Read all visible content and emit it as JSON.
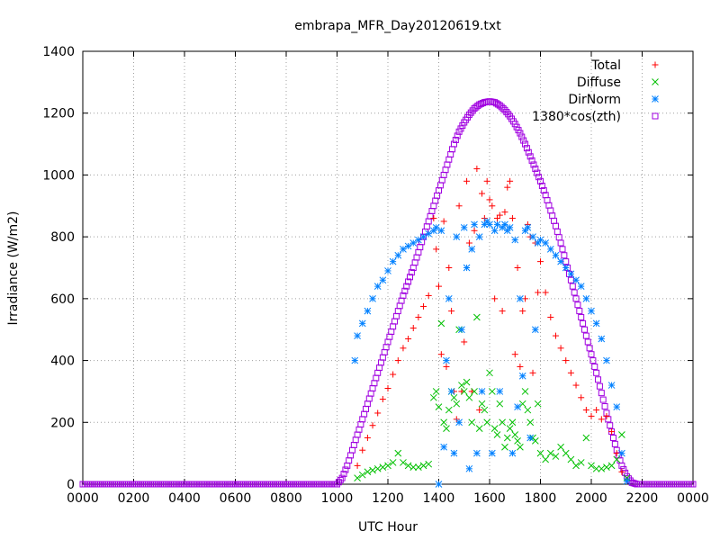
{
  "chart_data": {
    "type": "scatter",
    "title": "embrapa_MFR_Day20120619.txt",
    "xlabel": "UTC Hour",
    "ylabel": "Irradiance (W/m2)",
    "xlim": [
      0,
      24
    ],
    "ylim": [
      0,
      1400
    ],
    "xticks": [
      0,
      2,
      4,
      6,
      8,
      10,
      12,
      14,
      16,
      18,
      20,
      22,
      24
    ],
    "xtick_labels": [
      "0000",
      "0200",
      "0400",
      "0600",
      "0800",
      "1000",
      "1200",
      "1400",
      "1600",
      "1800",
      "2000",
      "2200",
      "0000"
    ],
    "yticks": [
      0,
      200,
      400,
      600,
      800,
      1000,
      1200,
      1400
    ],
    "ytick_labels": [
      "0",
      "200",
      "400",
      "600",
      "800",
      "1000",
      "1200",
      "1400"
    ],
    "grid": true,
    "legend_position": "top-right",
    "series": [
      {
        "name": "Total",
        "marker": "plus",
        "color": "#ff0000",
        "x": [
          10.8,
          11.0,
          11.2,
          11.4,
          11.6,
          11.8,
          12.0,
          12.2,
          12.4,
          12.6,
          12.8,
          13.0,
          13.2,
          13.4,
          13.6,
          13.8,
          13.9,
          14.0,
          14.1,
          14.2,
          14.3,
          14.4,
          14.5,
          14.6,
          14.7,
          14.8,
          14.9,
          15.0,
          15.1,
          15.2,
          15.3,
          15.4,
          15.5,
          15.6,
          15.7,
          15.8,
          15.9,
          16.0,
          16.1,
          16.2,
          16.3,
          16.4,
          16.5,
          16.6,
          16.7,
          16.8,
          16.9,
          17.0,
          17.1,
          17.2,
          17.3,
          17.4,
          17.5,
          17.6,
          17.7,
          17.8,
          17.9,
          18.0,
          18.2,
          18.4,
          18.6,
          18.8,
          19.0,
          19.2,
          19.4,
          19.6,
          19.8,
          20.0,
          20.2,
          20.4,
          20.6,
          20.8,
          21.0,
          21.2,
          21.4
        ],
        "y": [
          60,
          110,
          150,
          190,
          230,
          275,
          310,
          355,
          400,
          440,
          470,
          505,
          540,
          575,
          610,
          860,
          760,
          640,
          420,
          850,
          380,
          700,
          560,
          300,
          210,
          900,
          300,
          460,
          980,
          780,
          300,
          820,
          1020,
          240,
          940,
          860,
          980,
          920,
          900,
          600,
          860,
          870,
          560,
          880,
          960,
          980,
          860,
          420,
          700,
          380,
          560,
          600,
          840,
          800,
          360,
          780,
          620,
          720,
          620,
          540,
          480,
          440,
          400,
          360,
          320,
          280,
          240,
          220,
          240,
          210,
          220,
          170,
          100,
          40,
          10
        ]
      },
      {
        "name": "Diffuse",
        "marker": "cross",
        "color": "#00c000",
        "x": [
          10.8,
          11.0,
          11.2,
          11.4,
          11.6,
          11.8,
          12.0,
          12.2,
          12.4,
          12.6,
          12.8,
          13.0,
          13.2,
          13.4,
          13.6,
          13.8,
          13.9,
          14.0,
          14.1,
          14.2,
          14.3,
          14.4,
          14.5,
          14.6,
          14.7,
          14.8,
          14.9,
          15.0,
          15.1,
          15.2,
          15.3,
          15.4,
          15.5,
          15.6,
          15.7,
          15.8,
          15.9,
          16.0,
          16.1,
          16.2,
          16.3,
          16.4,
          16.5,
          16.6,
          16.7,
          16.8,
          16.9,
          17.0,
          17.1,
          17.2,
          17.3,
          17.4,
          17.5,
          17.6,
          17.7,
          17.8,
          17.9,
          18.0,
          18.2,
          18.4,
          18.6,
          18.8,
          19.0,
          19.2,
          19.4,
          19.6,
          19.8,
          20.0,
          20.2,
          20.4,
          20.6,
          20.8,
          21.0,
          21.2,
          21.4
        ],
        "y": [
          20,
          30,
          40,
          45,
          50,
          55,
          60,
          70,
          100,
          70,
          60,
          55,
          55,
          60,
          65,
          280,
          300,
          250,
          520,
          200,
          180,
          240,
          300,
          280,
          260,
          500,
          320,
          300,
          330,
          280,
          200,
          300,
          540,
          180,
          260,
          240,
          200,
          360,
          300,
          180,
          160,
          260,
          200,
          120,
          150,
          180,
          200,
          160,
          140,
          120,
          260,
          300,
          240,
          200,
          150,
          140,
          260,
          100,
          80,
          100,
          90,
          120,
          100,
          80,
          60,
          70,
          150,
          60,
          50,
          50,
          55,
          60,
          80,
          160,
          20
        ],
        "note_hidden": ""
      },
      {
        "name": "DirNorm",
        "marker": "star",
        "color": "#0080ff",
        "x": [
          10.7,
          10.8,
          11.0,
          11.2,
          11.4,
          11.6,
          11.8,
          12.0,
          12.2,
          12.4,
          12.6,
          12.8,
          13.0,
          13.2,
          13.4,
          13.6,
          13.8,
          13.9,
          14.0,
          14.1,
          14.2,
          14.3,
          14.4,
          14.5,
          14.6,
          14.7,
          14.8,
          14.9,
          15.0,
          15.1,
          15.2,
          15.3,
          15.4,
          15.5,
          15.6,
          15.7,
          15.8,
          15.9,
          16.0,
          16.1,
          16.2,
          16.3,
          16.4,
          16.5,
          16.6,
          16.7,
          16.8,
          16.9,
          17.0,
          17.1,
          17.2,
          17.3,
          17.4,
          17.5,
          17.6,
          17.7,
          17.8,
          17.9,
          18.0,
          18.2,
          18.4,
          18.6,
          18.8,
          19.0,
          19.2,
          19.4,
          19.6,
          19.8,
          20.0,
          20.2,
          20.4,
          20.6,
          20.8,
          21.0,
          21.2,
          21.4
        ],
        "y": [
          400,
          480,
          520,
          560,
          600,
          640,
          660,
          690,
          720,
          740,
          760,
          770,
          780,
          790,
          800,
          810,
          820,
          830,
          0,
          820,
          120,
          400,
          600,
          300,
          100,
          800,
          200,
          500,
          830,
          700,
          50,
          760,
          840,
          100,
          800,
          300,
          840,
          850,
          840,
          100,
          820,
          840,
          300,
          830,
          840,
          820,
          830,
          100,
          790,
          250,
          600,
          350,
          820,
          830,
          150,
          800,
          500,
          780,
          790,
          780,
          760,
          740,
          720,
          700,
          680,
          660,
          640,
          600,
          560,
          520,
          470,
          400,
          320,
          250,
          100,
          10
        ]
      },
      {
        "name": "1380*cos(zth)",
        "marker": "square",
        "color": "#a000e0",
        "x": [
          0,
          10.0,
          10.2,
          10.4,
          10.6,
          10.8,
          11.0,
          11.2,
          11.4,
          11.6,
          11.8,
          12.0,
          12.2,
          12.4,
          12.6,
          12.8,
          13.0,
          13.2,
          13.4,
          13.6,
          13.8,
          14.0,
          14.2,
          14.4,
          14.6,
          14.8,
          15.0,
          15.2,
          15.4,
          15.6,
          15.8,
          16.0,
          16.2,
          16.4,
          16.6,
          16.8,
          17.0,
          17.2,
          17.4,
          17.6,
          17.8,
          18.0,
          18.2,
          18.4,
          18.6,
          18.8,
          19.0,
          19.2,
          19.4,
          19.6,
          19.8,
          20.0,
          20.2,
          20.4,
          20.6,
          20.8,
          21.0,
          21.2,
          21.4,
          21.6,
          21.8,
          22.0,
          24
        ],
        "y": [
          0,
          0,
          20,
          60,
          110,
          160,
          210,
          260,
          310,
          360,
          410,
          460,
          510,
          560,
          610,
          655,
          700,
          750,
          800,
          850,
          900,
          950,
          1000,
          1050,
          1100,
          1140,
          1170,
          1195,
          1215,
          1228,
          1235,
          1238,
          1235,
          1225,
          1210,
          1190,
          1165,
          1135,
          1100,
          1060,
          1020,
          980,
          935,
          885,
          835,
          780,
          720,
          660,
          600,
          540,
          480,
          420,
          360,
          295,
          230,
          170,
          110,
          60,
          25,
          5,
          0,
          0,
          0
        ]
      }
    ]
  }
}
